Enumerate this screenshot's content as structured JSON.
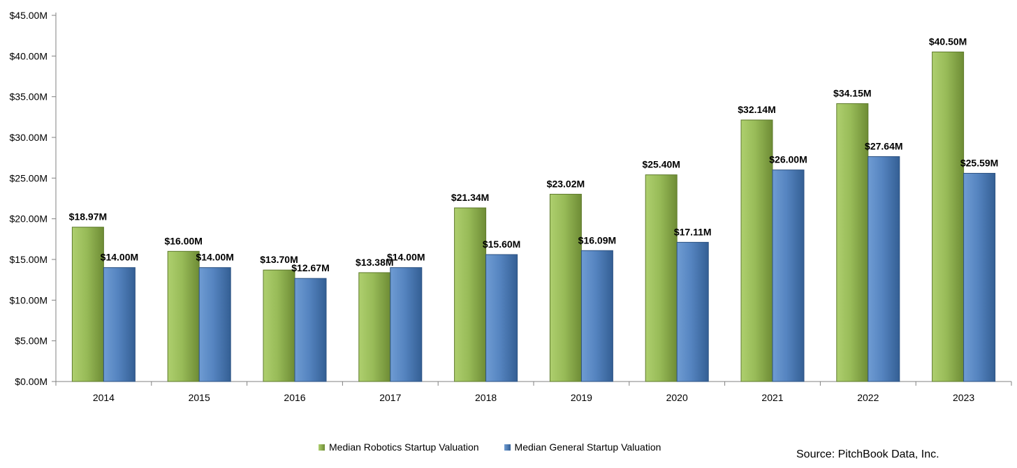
{
  "chart_data": {
    "type": "bar",
    "categories": [
      "2014",
      "2015",
      "2016",
      "2017",
      "2018",
      "2019",
      "2020",
      "2021",
      "2022",
      "2023"
    ],
    "series": [
      {
        "name": "Median Robotics Startup Valuation",
        "color": "#8fb050",
        "values": [
          18.97,
          16.0,
          13.7,
          13.38,
          21.34,
          23.02,
          25.4,
          32.14,
          34.15,
          40.5
        ],
        "labels": [
          "$18.97M",
          "$16.00M",
          "$13.70M",
          "$13.38M",
          "$21.34M",
          "$23.02M",
          "$25.40M",
          "$32.14M",
          "$34.15M",
          "$40.50M"
        ]
      },
      {
        "name": "Median General Startup Valuation",
        "color": "#4f81bd",
        "values": [
          14.0,
          14.0,
          12.67,
          14.0,
          15.6,
          16.09,
          17.11,
          26.0,
          27.64,
          25.59
        ],
        "labels": [
          "$14.00M",
          "$14.00M",
          "$12.67M",
          "$14.00M",
          "$15.60M",
          "$16.09M",
          "$17.11M",
          "$26.00M",
          "$27.64M",
          "$25.59M"
        ]
      }
    ],
    "ylim": [
      0,
      45
    ],
    "yticks": [
      0,
      5,
      10,
      15,
      20,
      25,
      30,
      35,
      40,
      45
    ],
    "ytick_labels": [
      "$0.00M",
      "$5.00M",
      "$10.00M",
      "$15.00M",
      "$20.00M",
      "$25.00M",
      "$30.00M",
      "$35.00M",
      "$40.00M",
      "$45.00M"
    ],
    "grid": false,
    "legend_position": "bottom",
    "source": "Source: PitchBook Data, Inc."
  }
}
